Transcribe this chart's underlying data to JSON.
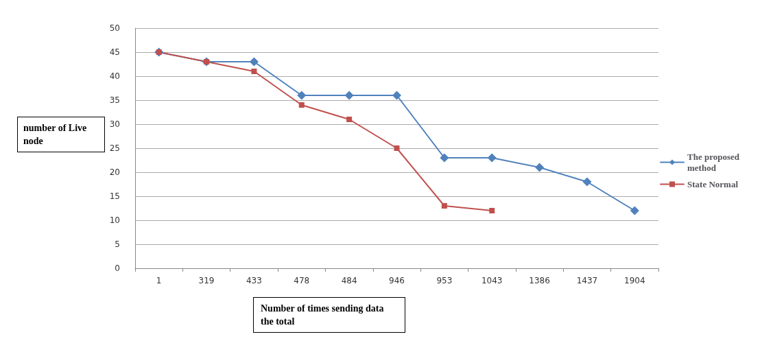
{
  "chart_data": {
    "type": "line",
    "xlabel": "Number of times sending data the total",
    "ylabel": "number of Live node",
    "categories": [
      "1",
      "319",
      "433",
      "478",
      "484",
      "946",
      "953",
      "1043",
      "1386",
      "1437",
      "1904"
    ],
    "series": [
      {
        "name": "The proposed method",
        "color": "#4f81bd",
        "marker": "diamond",
        "values": [
          45,
          43,
          43,
          36,
          36,
          36,
          23,
          23,
          21,
          18,
          12
        ]
      },
      {
        "name": "State Normal",
        "color": "#c0504d",
        "marker": "square",
        "values": [
          45,
          43,
          41,
          34,
          31,
          25,
          13,
          12,
          null,
          null,
          null
        ]
      }
    ],
    "ylim": [
      0,
      50
    ],
    "yticks": [
      0,
      5,
      10,
      15,
      20,
      25,
      30,
      35,
      40,
      45,
      50
    ],
    "grid": "y",
    "legend": "right",
    "line_style": "solid"
  }
}
